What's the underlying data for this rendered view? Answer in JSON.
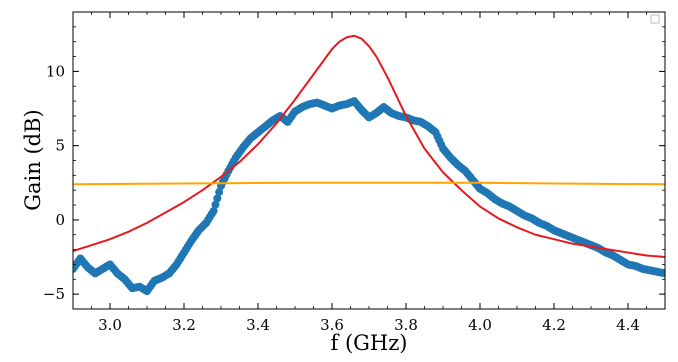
{
  "chart_data": {
    "type": "line",
    "title": "",
    "xlabel": "f (GHz)",
    "ylabel": "Gain (dB)",
    "xlim": [
      2.9,
      4.5
    ],
    "ylim": [
      -6,
      14
    ],
    "x_ticks": [
      3.0,
      3.2,
      3.4,
      3.6,
      3.8,
      4.0,
      4.2,
      4.4
    ],
    "x_tick_labels": [
      "3.0",
      "3.2",
      "3.4",
      "3.6",
      "3.8",
      "4.0",
      "4.2",
      "4.4"
    ],
    "y_ticks": [
      -5,
      0,
      5,
      10
    ],
    "y_tick_labels": [
      "−5",
      "0",
      "5",
      "10"
    ],
    "grid": false,
    "legend": "top-right (empty)",
    "series": [
      {
        "kind": "scatter",
        "color": "#1f77b4",
        "x": [
          2.9,
          2.92,
          2.94,
          2.96,
          2.98,
          3.0,
          3.02,
          3.04,
          3.06,
          3.08,
          3.1,
          3.12,
          3.14,
          3.16,
          3.18,
          3.2,
          3.22,
          3.24,
          3.26,
          3.28,
          3.3,
          3.32,
          3.34,
          3.36,
          3.38,
          3.4,
          3.42,
          3.44,
          3.46,
          3.48,
          3.5,
          3.52,
          3.54,
          3.56,
          3.58,
          3.6,
          3.62,
          3.64,
          3.66,
          3.68,
          3.7,
          3.72,
          3.74,
          3.76,
          3.78,
          3.8,
          3.82,
          3.84,
          3.86,
          3.88,
          3.9,
          3.92,
          3.94,
          3.96,
          3.98,
          4.0,
          4.02,
          4.04,
          4.06,
          4.08,
          4.1,
          4.12,
          4.14,
          4.16,
          4.18,
          4.2,
          4.22,
          4.24,
          4.26,
          4.28,
          4.3,
          4.32,
          4.34,
          4.36,
          4.38,
          4.4,
          4.42,
          4.44,
          4.46,
          4.48,
          4.5
        ],
        "y": [
          -3.3,
          -2.6,
          -3.2,
          -3.6,
          -3.3,
          -3.0,
          -3.6,
          -4.0,
          -4.6,
          -4.5,
          -4.8,
          -4.1,
          -3.9,
          -3.6,
          -3.0,
          -2.2,
          -1.4,
          -0.7,
          -0.2,
          0.6,
          2.3,
          3.3,
          4.2,
          4.9,
          5.5,
          5.9,
          6.3,
          6.7,
          7.0,
          6.6,
          7.3,
          7.6,
          7.8,
          7.9,
          7.7,
          7.5,
          7.7,
          7.8,
          8.0,
          7.4,
          6.9,
          7.2,
          7.6,
          7.2,
          7.0,
          6.9,
          6.7,
          6.6,
          6.3,
          5.9,
          4.8,
          4.2,
          3.7,
          3.3,
          2.7,
          2.1,
          1.8,
          1.4,
          1.1,
          0.9,
          0.6,
          0.3,
          0.1,
          -0.2,
          -0.4,
          -0.7,
          -0.9,
          -1.1,
          -1.3,
          -1.5,
          -1.7,
          -1.9,
          -2.2,
          -2.4,
          -2.7,
          -3.0,
          -3.1,
          -3.3,
          -3.4,
          -3.5,
          -3.6
        ]
      },
      {
        "kind": "line",
        "color": "#e41a1c",
        "x": [
          2.9,
          2.95,
          3.0,
          3.05,
          3.1,
          3.15,
          3.2,
          3.25,
          3.3,
          3.35,
          3.4,
          3.45,
          3.5,
          3.55,
          3.6,
          3.62,
          3.64,
          3.66,
          3.68,
          3.7,
          3.72,
          3.75,
          3.8,
          3.85,
          3.9,
          3.95,
          4.0,
          4.05,
          4.1,
          4.15,
          4.2,
          4.25,
          4.3,
          4.35,
          4.4,
          4.45,
          4.5
        ],
        "y": [
          -2.1,
          -1.7,
          -1.3,
          -0.8,
          -0.2,
          0.5,
          1.2,
          2.0,
          2.9,
          3.9,
          5.1,
          6.5,
          8.1,
          9.8,
          11.5,
          12.0,
          12.3,
          12.4,
          12.2,
          11.7,
          11.0,
          9.6,
          7.0,
          4.8,
          3.2,
          2.0,
          0.9,
          0.1,
          -0.5,
          -1.0,
          -1.3,
          -1.6,
          -1.8,
          -2.0,
          -2.2,
          -2.4,
          -2.5
        ]
      },
      {
        "kind": "line",
        "color": "#ffa500",
        "x": [
          2.9,
          3.2,
          3.5,
          3.7,
          4.0,
          4.2,
          4.5
        ],
        "y": [
          2.4,
          2.45,
          2.5,
          2.5,
          2.5,
          2.45,
          2.4
        ]
      }
    ]
  }
}
